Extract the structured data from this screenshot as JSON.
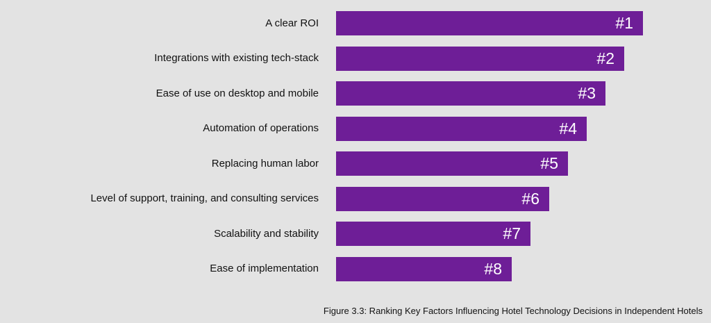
{
  "chart_data": {
    "type": "bar",
    "orientation": "horizontal",
    "categories": [
      "A clear ROI",
      "Integrations with existing tech-stack",
      "Ease of use on desktop and mobile",
      "Automation of operations",
      "Replacing human labor",
      "Level of support, training, and consulting services",
      "Scalability and stability",
      "Ease of implementation"
    ],
    "values": [
      8,
      7,
      6,
      5,
      4,
      3,
      2,
      1
    ],
    "data_labels": [
      "#1",
      "#2",
      "#3",
      "#4",
      "#5",
      "#6",
      "#7",
      "#8"
    ],
    "bar_color": "#6e1e97",
    "grid": false,
    "legend": "none"
  },
  "caption": "Figure 3.3: Ranking Key Factors Influencing Hotel Technology Decisions in Independent Hotels"
}
